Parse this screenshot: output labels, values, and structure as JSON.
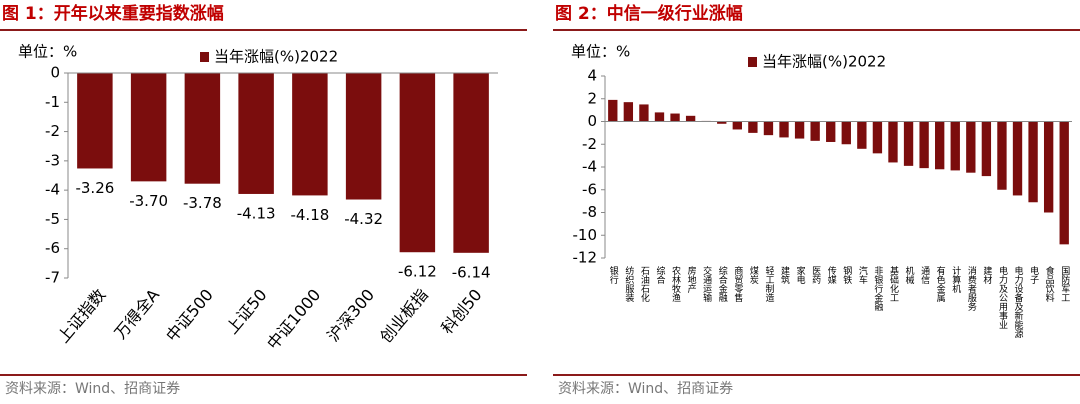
{
  "chart_data": [
    {
      "type": "bar",
      "title": "图 1：开年以来重要指数涨幅",
      "unit": "单位：%",
      "source": "资料来源：Wind、招商证券",
      "categories": [
        "上证指数",
        "万得全A",
        "中证500",
        "上证50",
        "中证1000",
        "沪深300",
        "创业板指",
        "科创50"
      ],
      "series": [
        {
          "name": "当年涨幅(%)2022",
          "color": "#7b0d0d",
          "values": [
            -3.26,
            -3.7,
            -3.78,
            -4.13,
            -4.18,
            -4.32,
            -6.12,
            -6.14
          ],
          "value_labels": [
            "-3.26",
            "-3.70",
            "-3.78",
            "-4.13",
            "-4.18",
            "-4.32",
            "-6.12",
            "-6.14"
          ]
        }
      ],
      "ylim": [
        -7,
        0
      ],
      "yticks": [
        0,
        -1,
        -2,
        -3,
        -4,
        -5,
        -6,
        -7
      ],
      "legend": "top"
    },
    {
      "type": "bar",
      "title": "图 2：中信一级行业涨幅",
      "unit": "单位：%",
      "source": "资料来源：Wind、招商证券",
      "categories": [
        "银行",
        "纺织服装",
        "石油石化",
        "综合",
        "农林牧渔",
        "房地产",
        "交通运输",
        "综合金融",
        "商贸零售",
        "煤炭",
        "轻工制造",
        "建筑",
        "家电",
        "医药",
        "传媒",
        "钢铁",
        "汽车",
        "非银行金融",
        "基础化工",
        "机械",
        "通信",
        "有色金属",
        "计算机",
        "消费者服务",
        "建材",
        "电力及公用事业",
        "电力设备及新能源",
        "电子",
        "食品饮料",
        "国防军工"
      ],
      "series": [
        {
          "name": "当年涨幅(%)2022",
          "color": "#7b0d0d",
          "values": [
            1.9,
            1.7,
            1.5,
            0.8,
            0.7,
            0.5,
            0.05,
            -0.2,
            -0.7,
            -1.0,
            -1.2,
            -1.4,
            -1.5,
            -1.7,
            -1.8,
            -2.0,
            -2.4,
            -2.8,
            -3.6,
            -3.9,
            -4.1,
            -4.2,
            -4.3,
            -4.5,
            -4.8,
            -6.0,
            -6.5,
            -7.1,
            -8.0,
            -10.8
          ]
        }
      ],
      "ylim": [
        -12,
        4
      ],
      "yticks": [
        4,
        2,
        0,
        -2,
        -4,
        -6,
        -8,
        -10,
        -12
      ],
      "legend": "top"
    }
  ]
}
